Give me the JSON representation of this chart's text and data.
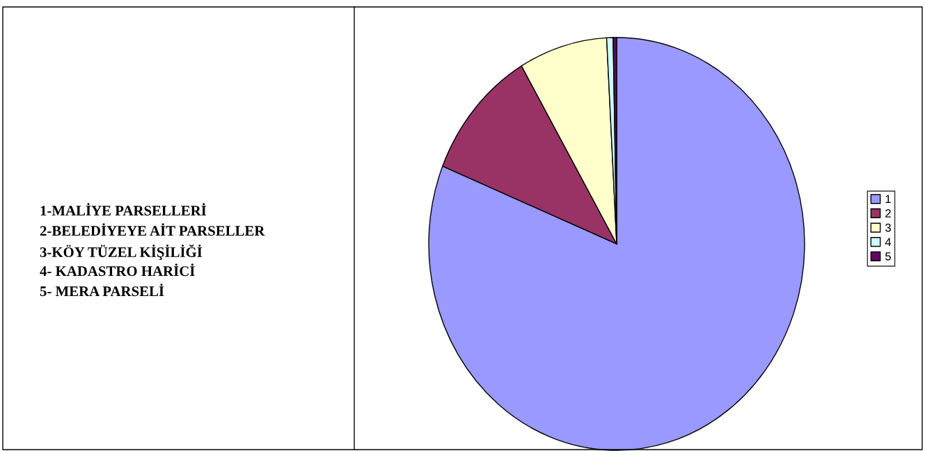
{
  "chart_data": {
    "type": "pie",
    "categories": [
      "1",
      "2",
      "3",
      "4",
      "5"
    ],
    "values": [
      81.15,
      10.4,
      7.6,
      0.55,
      0.3
    ],
    "colors": [
      "#9999ff",
      "#993366",
      "#ffffcc",
      "#ccffff",
      "#660066"
    ],
    "legend": "right",
    "annotations": [
      "1-MALİYE PARSELLERİ",
      "2-BELEDİYEYE AİT PARSELLER",
      "3-KÖY TÜZEL KİŞİLİĞİ",
      "4- KADASTRO HARİCİ",
      "5- MERA PARSELİ"
    ]
  }
}
